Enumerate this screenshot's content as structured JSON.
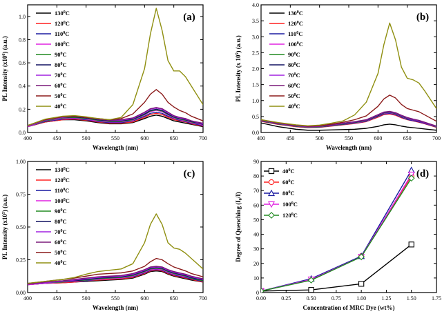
{
  "figure": {
    "panels": [
      {
        "id": "a",
        "panel_label": "(a)",
        "legend_labels": [
          "130°C",
          "120°C",
          "110°C",
          "100°C",
          "90°C",
          "80°C",
          "70°C",
          "60°C",
          "50°C",
          "40°C"
        ]
      },
      {
        "id": "b",
        "panel_label": "(b)",
        "legend_labels": [
          "130°C",
          "120°C",
          "110°C",
          "100°C",
          "90°C",
          "80°C",
          "70°C",
          "60°C",
          "50°C",
          "40°C"
        ]
      },
      {
        "id": "c",
        "panel_label": "(c)",
        "legend_labels": [
          "130°C",
          "120°C",
          "110°C",
          "100°C",
          "90°C",
          "80°C",
          "70°C",
          "60°C",
          "50°C",
          "40°C"
        ]
      },
      {
        "id": "d",
        "panel_label": "(d)",
        "legend_labels": [
          "40°C",
          "60°C",
          "80°C",
          "100°C",
          "120°C"
        ]
      }
    ]
  },
  "chart_data": [
    {
      "type": "line",
      "panel": "a",
      "xlabel": "Wavelength (nm)",
      "ylabel": "PL Intensity (x10^6) (a.u.)",
      "xlim": [
        400,
        700
      ],
      "ylim": [
        0.0,
        1.1
      ],
      "xticks": [
        400,
        450,
        500,
        550,
        600,
        650,
        700
      ],
      "yticks": [
        0.0,
        0.2,
        0.4,
        0.6,
        0.8,
        1.0
      ],
      "yticklabels": [
        "0.0",
        "0.2",
        "0.4",
        "0.6",
        "0.8",
        "1.0"
      ],
      "series_x": [
        400,
        430,
        460,
        480,
        500,
        520,
        540,
        560,
        580,
        600,
        610,
        620,
        630,
        640,
        650,
        660,
        670,
        680,
        700
      ],
      "series": [
        {
          "name": "130°C",
          "color": "#000000",
          "values": [
            0.05,
            0.09,
            0.11,
            0.11,
            0.1,
            0.085,
            0.075,
            0.075,
            0.085,
            0.12,
            0.14,
            0.15,
            0.14,
            0.12,
            0.1,
            0.09,
            0.08,
            0.07,
            0.05
          ]
        },
        {
          "name": "120°C",
          "color": "#ff2020",
          "values": [
            0.05,
            0.09,
            0.11,
            0.115,
            0.105,
            0.09,
            0.08,
            0.08,
            0.09,
            0.13,
            0.155,
            0.165,
            0.155,
            0.13,
            0.11,
            0.1,
            0.09,
            0.075,
            0.055
          ]
        },
        {
          "name": "110°C",
          "color": "#1a1aa0",
          "values": [
            0.05,
            0.095,
            0.115,
            0.12,
            0.11,
            0.095,
            0.085,
            0.085,
            0.1,
            0.14,
            0.165,
            0.175,
            0.165,
            0.14,
            0.12,
            0.105,
            0.095,
            0.08,
            0.06
          ]
        },
        {
          "name": "100°C",
          "color": "#e020e0",
          "values": [
            0.05,
            0.1,
            0.12,
            0.125,
            0.115,
            0.1,
            0.09,
            0.09,
            0.105,
            0.15,
            0.18,
            0.19,
            0.18,
            0.15,
            0.125,
            0.11,
            0.1,
            0.085,
            0.065
          ]
        },
        {
          "name": "90°C",
          "color": "#208a20",
          "values": [
            0.055,
            0.1,
            0.125,
            0.13,
            0.12,
            0.105,
            0.095,
            0.095,
            0.11,
            0.155,
            0.185,
            0.195,
            0.185,
            0.155,
            0.13,
            0.115,
            0.105,
            0.09,
            0.07
          ]
        },
        {
          "name": "80°C",
          "color": "#101060",
          "values": [
            0.055,
            0.105,
            0.13,
            0.135,
            0.125,
            0.11,
            0.1,
            0.1,
            0.115,
            0.16,
            0.19,
            0.2,
            0.19,
            0.16,
            0.135,
            0.12,
            0.11,
            0.095,
            0.07
          ]
        },
        {
          "name": "70°C",
          "color": "#a020e0",
          "values": [
            0.055,
            0.105,
            0.13,
            0.14,
            0.13,
            0.115,
            0.105,
            0.105,
            0.12,
            0.17,
            0.2,
            0.21,
            0.2,
            0.17,
            0.14,
            0.125,
            0.115,
            0.1,
            0.075
          ]
        },
        {
          "name": "60°C",
          "color": "#7a1878",
          "values": [
            0.06,
            0.11,
            0.135,
            0.14,
            0.13,
            0.115,
            0.105,
            0.11,
            0.125,
            0.175,
            0.205,
            0.215,
            0.205,
            0.175,
            0.145,
            0.13,
            0.12,
            0.1,
            0.08
          ]
        },
        {
          "name": "50°C",
          "color": "#8b1a1a",
          "values": [
            0.06,
            0.11,
            0.135,
            0.14,
            0.13,
            0.12,
            0.11,
            0.12,
            0.16,
            0.26,
            0.33,
            0.37,
            0.33,
            0.26,
            0.22,
            0.19,
            0.17,
            0.14,
            0.1
          ]
        },
        {
          "name": "40°C",
          "color": "#8f8f10",
          "values": [
            0.06,
            0.115,
            0.14,
            0.145,
            0.135,
            0.12,
            0.11,
            0.13,
            0.24,
            0.55,
            0.85,
            1.07,
            0.88,
            0.62,
            0.53,
            0.53,
            0.48,
            0.4,
            0.24
          ]
        }
      ]
    },
    {
      "type": "line",
      "panel": "b",
      "xlabel": "Wavelength (nm)",
      "ylabel": "PL Intensity (x 10^5) (a.u.)",
      "xlim": [
        400,
        700
      ],
      "ylim": [
        0.0,
        4.0
      ],
      "xticks": [
        400,
        450,
        500,
        550,
        600,
        650,
        700
      ],
      "yticks": [
        0.0,
        0.5,
        1.0,
        1.5,
        2.0,
        2.5,
        3.0,
        3.5,
        4.0
      ],
      "yticklabels": [
        "0.0",
        "0.5",
        "1.0",
        "1.5",
        "2.0",
        "2.5",
        "3.0",
        "3.5",
        "4.0"
      ],
      "series_x": [
        400,
        430,
        460,
        480,
        500,
        520,
        540,
        560,
        580,
        600,
        610,
        620,
        630,
        640,
        650,
        660,
        670,
        680,
        700
      ],
      "series": [
        {
          "name": "130°C",
          "color": "#000000",
          "values": [
            0.3,
            0.18,
            0.1,
            0.07,
            0.07,
            0.08,
            0.09,
            0.1,
            0.13,
            0.19,
            0.24,
            0.26,
            0.24,
            0.2,
            0.17,
            0.15,
            0.13,
            0.11,
            0.07
          ]
        },
        {
          "name": "120°C",
          "color": "#ff2020",
          "values": [
            0.35,
            0.25,
            0.18,
            0.15,
            0.16,
            0.2,
            0.24,
            0.28,
            0.34,
            0.48,
            0.56,
            0.58,
            0.54,
            0.46,
            0.4,
            0.36,
            0.32,
            0.27,
            0.16
          ]
        },
        {
          "name": "110°C",
          "color": "#1a1aa0",
          "values": [
            0.36,
            0.26,
            0.19,
            0.16,
            0.17,
            0.21,
            0.25,
            0.29,
            0.35,
            0.5,
            0.58,
            0.6,
            0.56,
            0.48,
            0.41,
            0.37,
            0.33,
            0.28,
            0.17
          ]
        },
        {
          "name": "100°C",
          "color": "#e020e0",
          "values": [
            0.37,
            0.27,
            0.2,
            0.17,
            0.18,
            0.22,
            0.26,
            0.3,
            0.36,
            0.51,
            0.6,
            0.62,
            0.58,
            0.5,
            0.43,
            0.39,
            0.35,
            0.29,
            0.18
          ]
        },
        {
          "name": "90°C",
          "color": "#208a20",
          "values": [
            0.37,
            0.27,
            0.2,
            0.17,
            0.18,
            0.22,
            0.26,
            0.31,
            0.37,
            0.52,
            0.61,
            0.63,
            0.59,
            0.51,
            0.44,
            0.4,
            0.36,
            0.3,
            0.18
          ]
        },
        {
          "name": "80°C",
          "color": "#101060",
          "values": [
            0.38,
            0.28,
            0.21,
            0.18,
            0.19,
            0.23,
            0.27,
            0.32,
            0.38,
            0.53,
            0.62,
            0.64,
            0.6,
            0.52,
            0.45,
            0.4,
            0.36,
            0.3,
            0.19
          ]
        },
        {
          "name": "70°C",
          "color": "#a020e0",
          "values": [
            0.38,
            0.28,
            0.21,
            0.18,
            0.19,
            0.23,
            0.28,
            0.33,
            0.39,
            0.55,
            0.63,
            0.65,
            0.61,
            0.53,
            0.46,
            0.41,
            0.37,
            0.31,
            0.19
          ]
        },
        {
          "name": "60°C",
          "color": "#7a1878",
          "values": [
            0.39,
            0.29,
            0.22,
            0.19,
            0.2,
            0.24,
            0.29,
            0.34,
            0.4,
            0.56,
            0.64,
            0.66,
            0.62,
            0.54,
            0.47,
            0.42,
            0.38,
            0.32,
            0.2
          ]
        },
        {
          "name": "50°C",
          "color": "#8b1a1a",
          "values": [
            0.4,
            0.3,
            0.23,
            0.2,
            0.21,
            0.26,
            0.32,
            0.4,
            0.52,
            0.82,
            1.05,
            1.17,
            1.08,
            0.88,
            0.75,
            0.7,
            0.65,
            0.55,
            0.35
          ]
        },
        {
          "name": "40°C",
          "color": "#8f8f10",
          "values": [
            0.4,
            0.31,
            0.24,
            0.21,
            0.23,
            0.29,
            0.36,
            0.55,
            0.95,
            1.85,
            2.75,
            3.43,
            2.9,
            2.05,
            1.7,
            1.65,
            1.55,
            1.3,
            0.75
          ]
        }
      ]
    },
    {
      "type": "line",
      "panel": "c",
      "xlabel": "Wavelength (nm)",
      "ylabel": "PL Intensity (x10^5) (a.u.)",
      "xlim": [
        400,
        700
      ],
      "ylim": [
        0.0,
        1.0
      ],
      "xticks": [
        400,
        450,
        500,
        550,
        600,
        650,
        700
      ],
      "yticks": [
        0.0,
        0.25,
        0.5,
        0.75,
        1.0
      ],
      "yticklabels": [
        "0.00",
        "0.25",
        "0.50",
        "0.75",
        "1.00"
      ],
      "series_x": [
        400,
        430,
        460,
        480,
        500,
        520,
        540,
        560,
        580,
        600,
        610,
        620,
        630,
        640,
        650,
        660,
        670,
        680,
        700
      ],
      "series": [
        {
          "name": "130°C",
          "color": "#000000",
          "values": [
            0.06,
            0.07,
            0.075,
            0.08,
            0.085,
            0.09,
            0.095,
            0.1,
            0.11,
            0.14,
            0.16,
            0.165,
            0.16,
            0.14,
            0.125,
            0.115,
            0.105,
            0.095,
            0.08
          ]
        },
        {
          "name": "120°C",
          "color": "#ff2020",
          "values": [
            0.06,
            0.07,
            0.075,
            0.08,
            0.09,
            0.095,
            0.1,
            0.105,
            0.115,
            0.145,
            0.165,
            0.17,
            0.165,
            0.145,
            0.13,
            0.12,
            0.11,
            0.1,
            0.08
          ]
        },
        {
          "name": "110°C",
          "color": "#1a1aa0",
          "values": [
            0.06,
            0.07,
            0.08,
            0.085,
            0.09,
            0.1,
            0.105,
            0.11,
            0.12,
            0.15,
            0.17,
            0.175,
            0.17,
            0.15,
            0.135,
            0.125,
            0.115,
            0.105,
            0.085
          ]
        },
        {
          "name": "100°C",
          "color": "#e020e0",
          "values": [
            0.06,
            0.07,
            0.08,
            0.085,
            0.095,
            0.1,
            0.105,
            0.11,
            0.125,
            0.155,
            0.175,
            0.18,
            0.175,
            0.155,
            0.14,
            0.13,
            0.12,
            0.11,
            0.09
          ]
        },
        {
          "name": "90°C",
          "color": "#208a20",
          "values": [
            0.065,
            0.075,
            0.08,
            0.09,
            0.095,
            0.105,
            0.11,
            0.115,
            0.13,
            0.16,
            0.18,
            0.185,
            0.18,
            0.16,
            0.145,
            0.135,
            0.125,
            0.11,
            0.09
          ]
        },
        {
          "name": "80°C",
          "color": "#101060",
          "values": [
            0.065,
            0.075,
            0.085,
            0.09,
            0.1,
            0.11,
            0.115,
            0.12,
            0.135,
            0.165,
            0.185,
            0.19,
            0.185,
            0.165,
            0.15,
            0.14,
            0.13,
            0.115,
            0.095
          ]
        },
        {
          "name": "70°C",
          "color": "#a020e0",
          "values": [
            0.065,
            0.075,
            0.085,
            0.095,
            0.105,
            0.115,
            0.12,
            0.125,
            0.14,
            0.17,
            0.19,
            0.195,
            0.19,
            0.17,
            0.155,
            0.145,
            0.135,
            0.12,
            0.1
          ]
        },
        {
          "name": "60°C",
          "color": "#7a1878",
          "values": [
            0.065,
            0.08,
            0.09,
            0.1,
            0.11,
            0.12,
            0.125,
            0.13,
            0.145,
            0.175,
            0.195,
            0.2,
            0.195,
            0.175,
            0.16,
            0.15,
            0.14,
            0.125,
            0.105
          ]
        },
        {
          "name": "50°C",
          "color": "#8b1a1a",
          "values": [
            0.07,
            0.085,
            0.1,
            0.11,
            0.125,
            0.14,
            0.145,
            0.15,
            0.165,
            0.2,
            0.235,
            0.26,
            0.25,
            0.22,
            0.195,
            0.18,
            0.165,
            0.145,
            0.12
          ]
        },
        {
          "name": "40°C",
          "color": "#8f8f10",
          "values": [
            0.07,
            0.085,
            0.1,
            0.115,
            0.14,
            0.16,
            0.17,
            0.18,
            0.22,
            0.38,
            0.52,
            0.6,
            0.52,
            0.38,
            0.34,
            0.33,
            0.3,
            0.26,
            0.18
          ]
        }
      ]
    },
    {
      "type": "line",
      "panel": "d",
      "xlabel": "Concentration of MRC Dye (wt%)",
      "ylabel": "Degree of Quenching (I0/I)",
      "xlim": [
        0.0,
        1.75
      ],
      "ylim": [
        0,
        90
      ],
      "xticks": [
        0.0,
        0.25,
        0.5,
        0.75,
        1.0,
        1.25,
        1.5,
        1.75
      ],
      "xticklabels": [
        "0.00",
        "0.25",
        "0.50",
        "0.75",
        "1.00",
        "1.25",
        "1.50",
        "1.75"
      ],
      "yticks": [
        0,
        10,
        20,
        30,
        40,
        50,
        60,
        70,
        80,
        90
      ],
      "yticklabels": [
        "0",
        "10",
        "20",
        "30",
        "40",
        "50",
        "60",
        "70",
        "80",
        "90"
      ],
      "x": [
        0.0,
        0.5,
        1.0,
        1.5
      ],
      "series": [
        {
          "name": "40°C",
          "color": "#000000",
          "marker": "square",
          "values": [
            1,
            1.8,
            6,
            33
          ]
        },
        {
          "name": "60°C",
          "color": "#ff2020",
          "marker": "circle",
          "values": [
            1,
            9,
            25,
            80
          ]
        },
        {
          "name": "80°C",
          "color": "#1a1aa0",
          "marker": "triangle-up",
          "values": [
            1,
            9.5,
            25,
            84
          ]
        },
        {
          "name": "100°C",
          "color": "#e020e0",
          "marker": "triangle-down",
          "values": [
            1,
            9,
            24.5,
            81
          ]
        },
        {
          "name": "120°C",
          "color": "#208a20",
          "marker": "diamond",
          "values": [
            1,
            8.5,
            24.5,
            78.5
          ]
        }
      ]
    }
  ]
}
